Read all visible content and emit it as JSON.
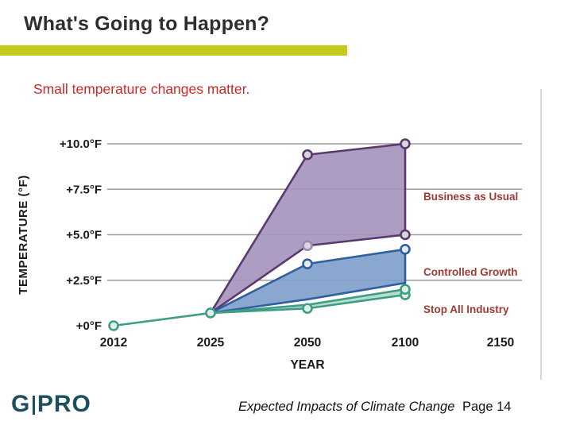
{
  "header": {
    "title": "What's Going to Happen?"
  },
  "subtitle": "Small temperature changes matter.",
  "chart_data": {
    "type": "area",
    "title": "",
    "xlabel": "YEAR",
    "ylabel": "TEMPERATURE (°F)",
    "categories": [
      "2012",
      "2025",
      "2050",
      "2100",
      "2150"
    ],
    "y_ticks": [
      {
        "label": "+10.0°F",
        "value": 10
      },
      {
        "label": "+7.5°F",
        "value": 7.5
      },
      {
        "label": "+5.0°F",
        "value": 5
      },
      {
        "label": "+2.5°F",
        "value": 2.5
      },
      {
        "label": "+0°F",
        "value": 0
      }
    ],
    "ylim": [
      0,
      10.5
    ],
    "grid": true,
    "legend_position": "right-inline",
    "series": [
      {
        "name": "Business as Usual",
        "type": "band",
        "color": "#5a3a6e",
        "fill": "#a795bd",
        "upper": [
          0,
          0.7,
          9.4,
          10.0,
          null
        ],
        "lower": [
          0,
          0.7,
          4.4,
          5.0,
          null
        ]
      },
      {
        "name": "Controlled Growth",
        "type": "band",
        "color": "#2f5f9e",
        "fill": "#7f9fcb",
        "upper": [
          0,
          0.7,
          3.4,
          4.2,
          null
        ],
        "lower": [
          0,
          0.7,
          1.45,
          2.35,
          null
        ]
      },
      {
        "name": "Stop All Industry",
        "type": "band",
        "color": "#3d9e85",
        "fill": "#b7d9cc",
        "upper": [
          0,
          0.7,
          1.15,
          2.0,
          null
        ],
        "lower": [
          0,
          0.7,
          0.95,
          1.7,
          null
        ]
      }
    ]
  },
  "footer": {
    "logo_g": "G",
    "logo_pro": "PRO",
    "caption_italic": "Expected Impacts of Climate Change",
    "caption_page": "Page 14"
  }
}
